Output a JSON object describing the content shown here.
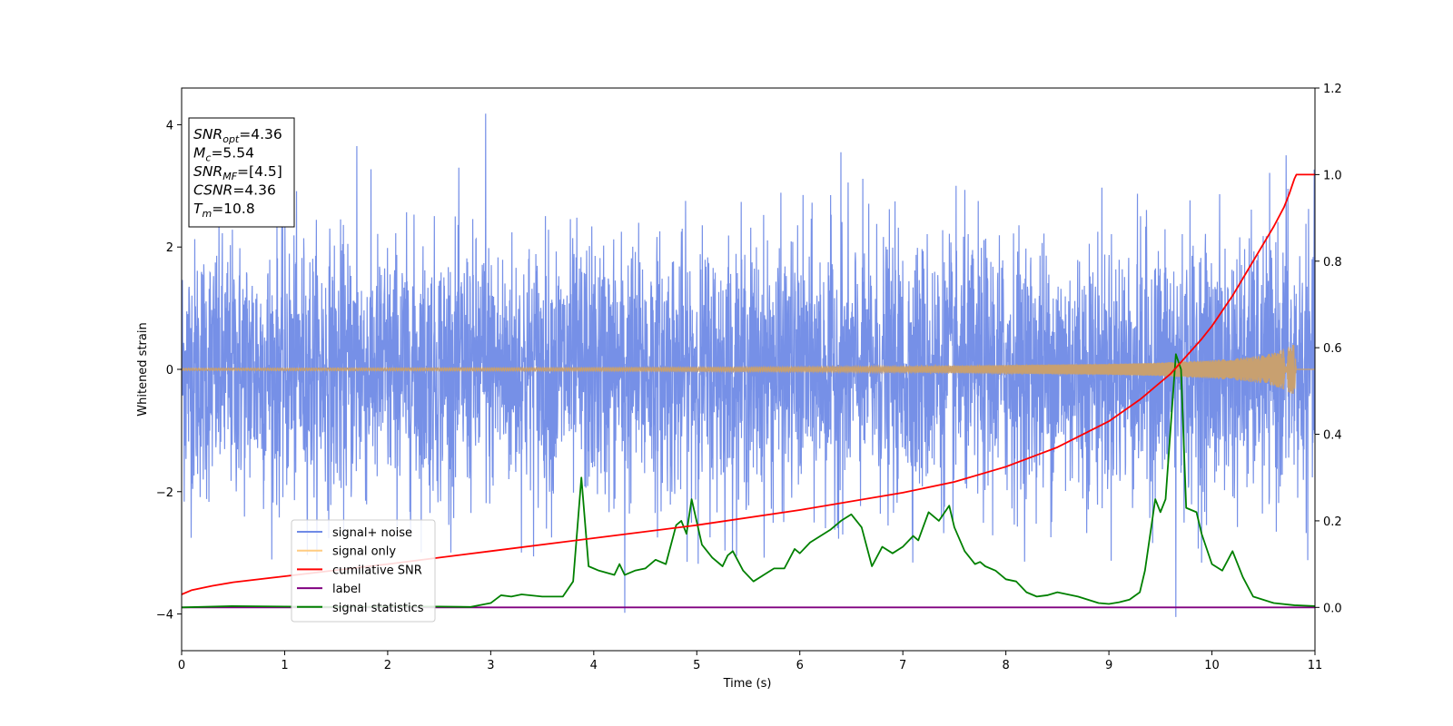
{
  "chart_data": {
    "type": "line",
    "xlabel": "Time (s)",
    "ylabel": "Whitened strain",
    "xlim": [
      0,
      11
    ],
    "ylim_left": [
      -4.6,
      4.6
    ],
    "ylim_right": [
      -0.1,
      1.2
    ],
    "x_ticks": [
      0,
      1,
      2,
      3,
      4,
      5,
      6,
      7,
      8,
      9,
      10,
      11
    ],
    "y_left_ticks": [
      -4,
      -2,
      0,
      2,
      4
    ],
    "y_left_tick_labels": [
      "−4",
      "−2",
      "0",
      "2",
      "4"
    ],
    "y_right_ticks": [
      0.0,
      0.2,
      0.4,
      0.6,
      0.8,
      1.0,
      1.2
    ],
    "y_right_tick_labels": [
      "0.0",
      "0.2",
      "0.4",
      "0.6",
      "0.8",
      "1.0",
      "1.2"
    ],
    "grid": false,
    "legend_position": "lower-left",
    "annotation": {
      "lines": [
        {
          "base": "SNR",
          "sub": "opt",
          "value": "=4.36"
        },
        {
          "base": "M",
          "sub": "c",
          "value": "=5.54"
        },
        {
          "base": "SNR",
          "sub": "MF",
          "value": "=[4.5]"
        },
        {
          "base": "CSNR",
          "sub": "",
          "value": "=4.36"
        },
        {
          "base": "T",
          "sub": "m",
          "value": "=10.8"
        }
      ]
    },
    "series": [
      {
        "name": "signal+ noise",
        "color": "#6f8ae6",
        "axis": "left",
        "description": "whitened noise plus signal, roughly unit variance",
        "typical_envelope": [
          -2.4,
          2.4
        ],
        "extremes": [
          {
            "x": 2.95,
            "y": 4.18
          },
          {
            "x": 9.65,
            "y": -4.05
          },
          {
            "x": 4.3,
            "y": -3.98
          },
          {
            "x": 1.7,
            "y": 3.65
          },
          {
            "x": 6.4,
            "y": 3.55
          },
          {
            "x": 10.72,
            "y": 3.5
          }
        ]
      },
      {
        "name": "signal only",
        "color": "#c8a070",
        "axis": "left",
        "description": "chirp signal, amplitude growing toward merger",
        "x": [
          0,
          2,
          4,
          6,
          7,
          8,
          9,
          9.5,
          10,
          10.3,
          10.5,
          10.65,
          10.75,
          10.8,
          10.82
        ],
        "amplitude": [
          0.02,
          0.025,
          0.03,
          0.04,
          0.05,
          0.07,
          0.09,
          0.11,
          0.15,
          0.19,
          0.23,
          0.3,
          0.38,
          0.42,
          0.0
        ]
      },
      {
        "name": "cumilative SNR",
        "color": "#ff0000",
        "axis": "right",
        "x": [
          0,
          0.1,
          0.3,
          0.5,
          1,
          2,
          3,
          4,
          5,
          6,
          7,
          7.5,
          8,
          8.5,
          9,
          9.3,
          9.6,
          9.9,
          10,
          10.2,
          10.4,
          10.6,
          10.7,
          10.75,
          10.8,
          10.82,
          10.85,
          11
        ],
        "y": [
          0.03,
          0.04,
          0.05,
          0.058,
          0.072,
          0.1,
          0.13,
          0.16,
          0.19,
          0.225,
          0.265,
          0.29,
          0.325,
          0.37,
          0.43,
          0.48,
          0.54,
          0.62,
          0.65,
          0.72,
          0.8,
          0.88,
          0.925,
          0.955,
          0.99,
          1.0,
          1.0,
          1.0
        ]
      },
      {
        "name": "label",
        "color": "#800080",
        "axis": "right",
        "x": [
          0,
          11
        ],
        "y": [
          0.0,
          0.0
        ]
      },
      {
        "name": "signal statistics",
        "color": "#008000",
        "axis": "right",
        "x": [
          0,
          0.5,
          1,
          1.5,
          2,
          2.5,
          2.8,
          3.0,
          3.1,
          3.2,
          3.3,
          3.5,
          3.7,
          3.8,
          3.88,
          3.95,
          4.05,
          4.2,
          4.25,
          4.3,
          4.4,
          4.5,
          4.6,
          4.7,
          4.8,
          4.85,
          4.9,
          4.95,
          5.05,
          5.15,
          5.25,
          5.3,
          5.35,
          5.45,
          5.55,
          5.65,
          5.75,
          5.85,
          5.95,
          6.0,
          6.1,
          6.2,
          6.3,
          6.4,
          6.5,
          6.6,
          6.7,
          6.8,
          6.9,
          7.0,
          7.1,
          7.15,
          7.25,
          7.35,
          7.45,
          7.5,
          7.6,
          7.7,
          7.75,
          7.8,
          7.9,
          8.0,
          8.1,
          8.2,
          8.3,
          8.4,
          8.5,
          8.7,
          8.9,
          9.0,
          9.1,
          9.2,
          9.3,
          9.35,
          9.45,
          9.5,
          9.55,
          9.65,
          9.7,
          9.75,
          9.85,
          9.9,
          10.0,
          10.1,
          10.2,
          10.3,
          10.4,
          10.6,
          10.8,
          11.0
        ],
        "y": [
          0.0,
          0.003,
          0.002,
          0.001,
          0.002,
          0.002,
          0.001,
          0.01,
          0.028,
          0.025,
          0.03,
          0.025,
          0.025,
          0.06,
          0.3,
          0.095,
          0.085,
          0.075,
          0.1,
          0.075,
          0.085,
          0.09,
          0.11,
          0.1,
          0.19,
          0.2,
          0.17,
          0.25,
          0.145,
          0.115,
          0.095,
          0.12,
          0.13,
          0.085,
          0.06,
          0.075,
          0.09,
          0.09,
          0.135,
          0.125,
          0.15,
          0.165,
          0.18,
          0.2,
          0.215,
          0.185,
          0.095,
          0.14,
          0.125,
          0.14,
          0.165,
          0.155,
          0.22,
          0.2,
          0.235,
          0.185,
          0.13,
          0.1,
          0.105,
          0.095,
          0.085,
          0.065,
          0.06,
          0.035,
          0.025,
          0.028,
          0.035,
          0.025,
          0.01,
          0.008,
          0.012,
          0.018,
          0.035,
          0.085,
          0.25,
          0.22,
          0.25,
          0.585,
          0.55,
          0.23,
          0.22,
          0.17,
          0.1,
          0.085,
          0.13,
          0.07,
          0.025,
          0.01,
          0.005,
          0.003
        ]
      }
    ]
  }
}
